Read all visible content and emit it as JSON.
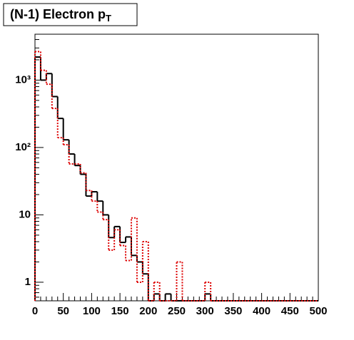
{
  "chart_data": {
    "type": "histogram",
    "title": "(N-1) Electron p",
    "title_subscript": "T",
    "bins": [
      0,
      10,
      20,
      30,
      40,
      50,
      60,
      70,
      80,
      90,
      100,
      110,
      120,
      130,
      140,
      150,
      160,
      170,
      180,
      190,
      200,
      210,
      220,
      230,
      240,
      250,
      260,
      270,
      280,
      290,
      300,
      310,
      320,
      330,
      340,
      350,
      360,
      370,
      380,
      390,
      400,
      410,
      420,
      430,
      440,
      450,
      460,
      470,
      480,
      490,
      500
    ],
    "series": [
      {
        "color": "#000000",
        "style": "solid",
        "values": [
          2200,
          1000,
          1250,
          570,
          270,
          130,
          80,
          54,
          40,
          19,
          22,
          16,
          10,
          4.6,
          6.7,
          3.9,
          4.7,
          2.5,
          2.0,
          1.33,
          0,
          0.67,
          0,
          0.67,
          0,
          0,
          0,
          0,
          0,
          0,
          0.67,
          0,
          0,
          0,
          0,
          0,
          0,
          0,
          0,
          0,
          0,
          0,
          0,
          0,
          0,
          0,
          0,
          0,
          0,
          0
        ]
      },
      {
        "color": "#dd0000",
        "style": "dotted",
        "values": [
          2650,
          1400,
          870,
          380,
          140,
          110,
          57,
          57,
          42,
          23,
          16,
          11,
          8.5,
          3.0,
          6.0,
          3.5,
          2.1,
          9.0,
          1.0,
          4.0,
          0,
          1.0,
          0,
          0,
          0,
          2.0,
          0,
          0,
          0,
          0,
          1.0,
          0,
          0,
          0,
          0,
          0,
          0,
          0,
          0,
          0,
          0,
          0,
          0,
          0,
          0,
          0,
          0,
          0,
          0,
          0
        ]
      }
    ],
    "xlim": [
      0,
      500
    ],
    "xticks": [
      0,
      50,
      100,
      150,
      200,
      250,
      300,
      350,
      400,
      450,
      500
    ],
    "ylim": [
      0.53,
      4800
    ],
    "log_y": true,
    "yticks": [
      1,
      10,
      {
        "value": 100,
        "label": "10²"
      },
      {
        "value": 1000,
        "label": "10³"
      }
    ]
  }
}
